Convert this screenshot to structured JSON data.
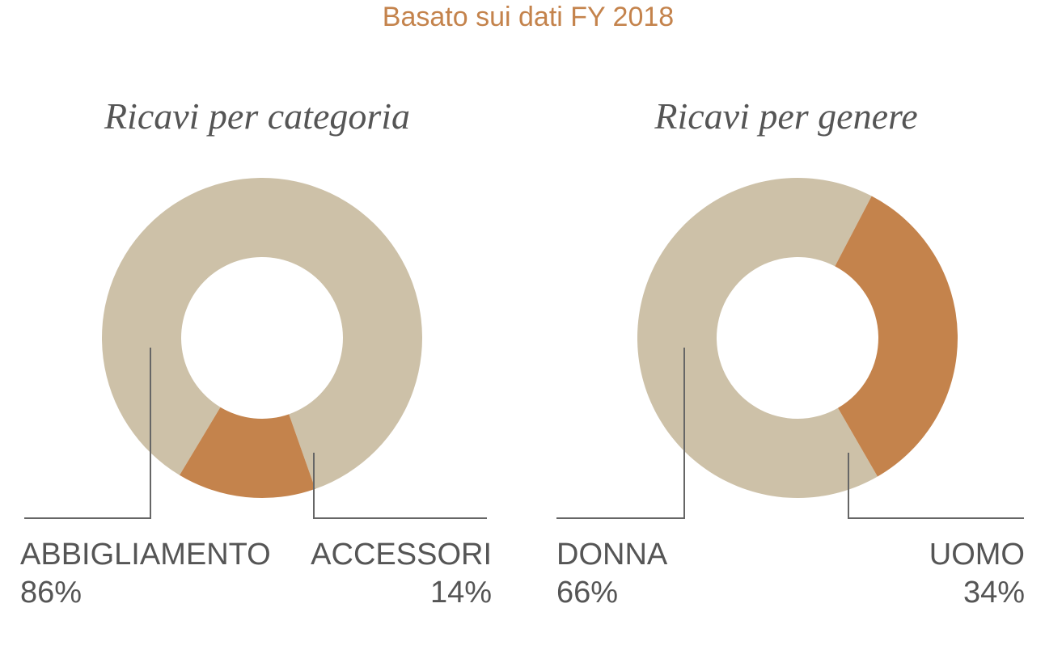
{
  "subtitle": "Basato sui dati FY 2018",
  "colors": {
    "subtitle": "#c4834c",
    "slice_light": "#cdc1a8",
    "slice_accent": "#c4834c",
    "text": "#555555",
    "leader": "#666666"
  },
  "chart_data": [
    {
      "type": "pie",
      "variant": "donut",
      "title": "Ricavi per categoria",
      "categories": [
        "ABBIGLIAMENTO",
        "ACCESSORI"
      ],
      "values": [
        86,
        14
      ],
      "value_labels": [
        "86%",
        "14%"
      ],
      "colors": [
        "#cdc1a8",
        "#c4834c"
      ]
    },
    {
      "type": "pie",
      "variant": "donut",
      "title": "Ricavi per genere",
      "categories": [
        "DONNA",
        "UOMO"
      ],
      "values": [
        66,
        34
      ],
      "value_labels": [
        "66%",
        "34%"
      ],
      "colors": [
        "#cdc1a8",
        "#c4834c"
      ]
    }
  ]
}
